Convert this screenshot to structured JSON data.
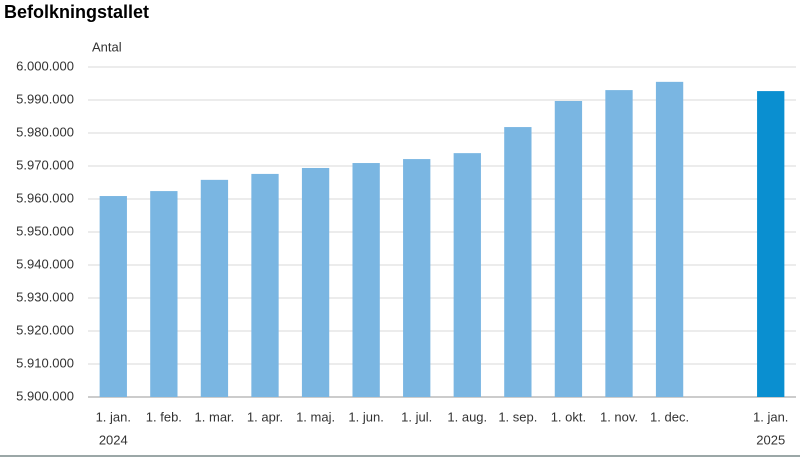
{
  "chart_data": {
    "type": "bar",
    "title": "Befolkningstallet",
    "y_label": "Antal",
    "categories": [
      "1. jan.",
      "1. feb.",
      "1. mar.",
      "1. apr.",
      "1. maj.",
      "1. jun.",
      "1. jul.",
      "1. aug.",
      "1. sep.",
      "1. okt.",
      "1. nov.",
      "1. dec.",
      null,
      "1. jan."
    ],
    "x_sublabels": [
      "2024",
      null,
      null,
      null,
      null,
      null,
      null,
      null,
      null,
      null,
      null,
      null,
      null,
      "2025"
    ],
    "values": [
      5960900,
      5962400,
      5965800,
      5967600,
      5969400,
      5970900,
      5972100,
      5973900,
      5981800,
      5989700,
      5993000,
      5995500,
      null,
      5992700
    ],
    "colors": [
      "#7ab6e2",
      "#7ab6e2",
      "#7ab6e2",
      "#7ab6e2",
      "#7ab6e2",
      "#7ab6e2",
      "#7ab6e2",
      "#7ab6e2",
      "#7ab6e2",
      "#7ab6e2",
      "#7ab6e2",
      "#7ab6e2",
      null,
      "#0a8fd0"
    ],
    "ylim": [
      5900000,
      6000000
    ],
    "yticks": [
      {
        "value": 5900000,
        "label": "5.900.000"
      },
      {
        "value": 5910000,
        "label": "5.910.000"
      },
      {
        "value": 5920000,
        "label": "5.920.000"
      },
      {
        "value": 5930000,
        "label": "5.930.000"
      },
      {
        "value": 5940000,
        "label": "5.940.000"
      },
      {
        "value": 5950000,
        "label": "5.950.000"
      },
      {
        "value": 5960000,
        "label": "5.960.000"
      },
      {
        "value": 5970000,
        "label": "5.970.000"
      },
      {
        "value": 5980000,
        "label": "5.980.000"
      },
      {
        "value": 5990000,
        "label": "5.990.000"
      },
      {
        "value": 6000000,
        "label": "6.000.000"
      }
    ],
    "grid": true
  }
}
